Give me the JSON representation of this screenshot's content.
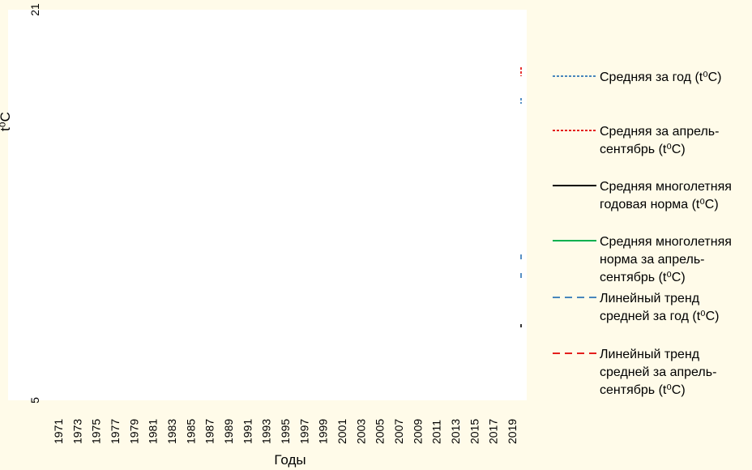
{
  "chart_data": {
    "type": "line",
    "xlabel": "Годы",
    "ylabel": "t⁰C",
    "ylim": [
      5,
      21
    ],
    "y_ticks_visible": [
      "21",
      "5"
    ],
    "x_categories": [
      "1971",
      "1973",
      "1975",
      "1977",
      "1979",
      "1981",
      "1983",
      "1985",
      "1987",
      "1989",
      "1991",
      "1993",
      "1995",
      "1997",
      "1999",
      "2001",
      "2003",
      "2005",
      "2007",
      "2009",
      "2011",
      "2013",
      "2015",
      "2017",
      "2019"
    ],
    "legend_placement": "right",
    "series": [
      {
        "name": "Средняя за год (t⁰C)",
        "name_lines": [
          "Средняя за год (t⁰C)"
        ],
        "style": "dotted",
        "color": "#2e75b6"
      },
      {
        "name": "Средняя за апрель-сентябрь (t⁰C)",
        "name_lines": [
          "Средняя за апрель-",
          "сентябрь (t⁰C)"
        ],
        "style": "dotted",
        "color": "#e00000"
      },
      {
        "name": "Средняя многолетняя годовая норма (t⁰C)",
        "name_lines": [
          "Средняя многолетняя",
          "годовая норма (t⁰C)"
        ],
        "style": "solid",
        "color": "#000000"
      },
      {
        "name": "Средняя многолетняя норма за апрель-сентябрь (t⁰C)",
        "name_lines": [
          "Средняя многолетняя",
          "норма за апрель-",
          "сентябрь (t⁰C)"
        ],
        "style": "solid",
        "color": "#00b050"
      },
      {
        "name": "Линейный тренд средней за год (t⁰C)",
        "name_lines": [
          "Линейный тренд",
          "средней за год (t⁰C)"
        ],
        "style": "dashed",
        "color": "#2e75b6"
      },
      {
        "name": "Линейный тренд средней за апрель-сентябрь (t⁰C)",
        "name_lines": [
          "Линейный тренд",
          "средней за апрель-",
          "сентябрь (t⁰C)"
        ],
        "style": "dashed",
        "color": "#e00000"
      }
    ]
  }
}
